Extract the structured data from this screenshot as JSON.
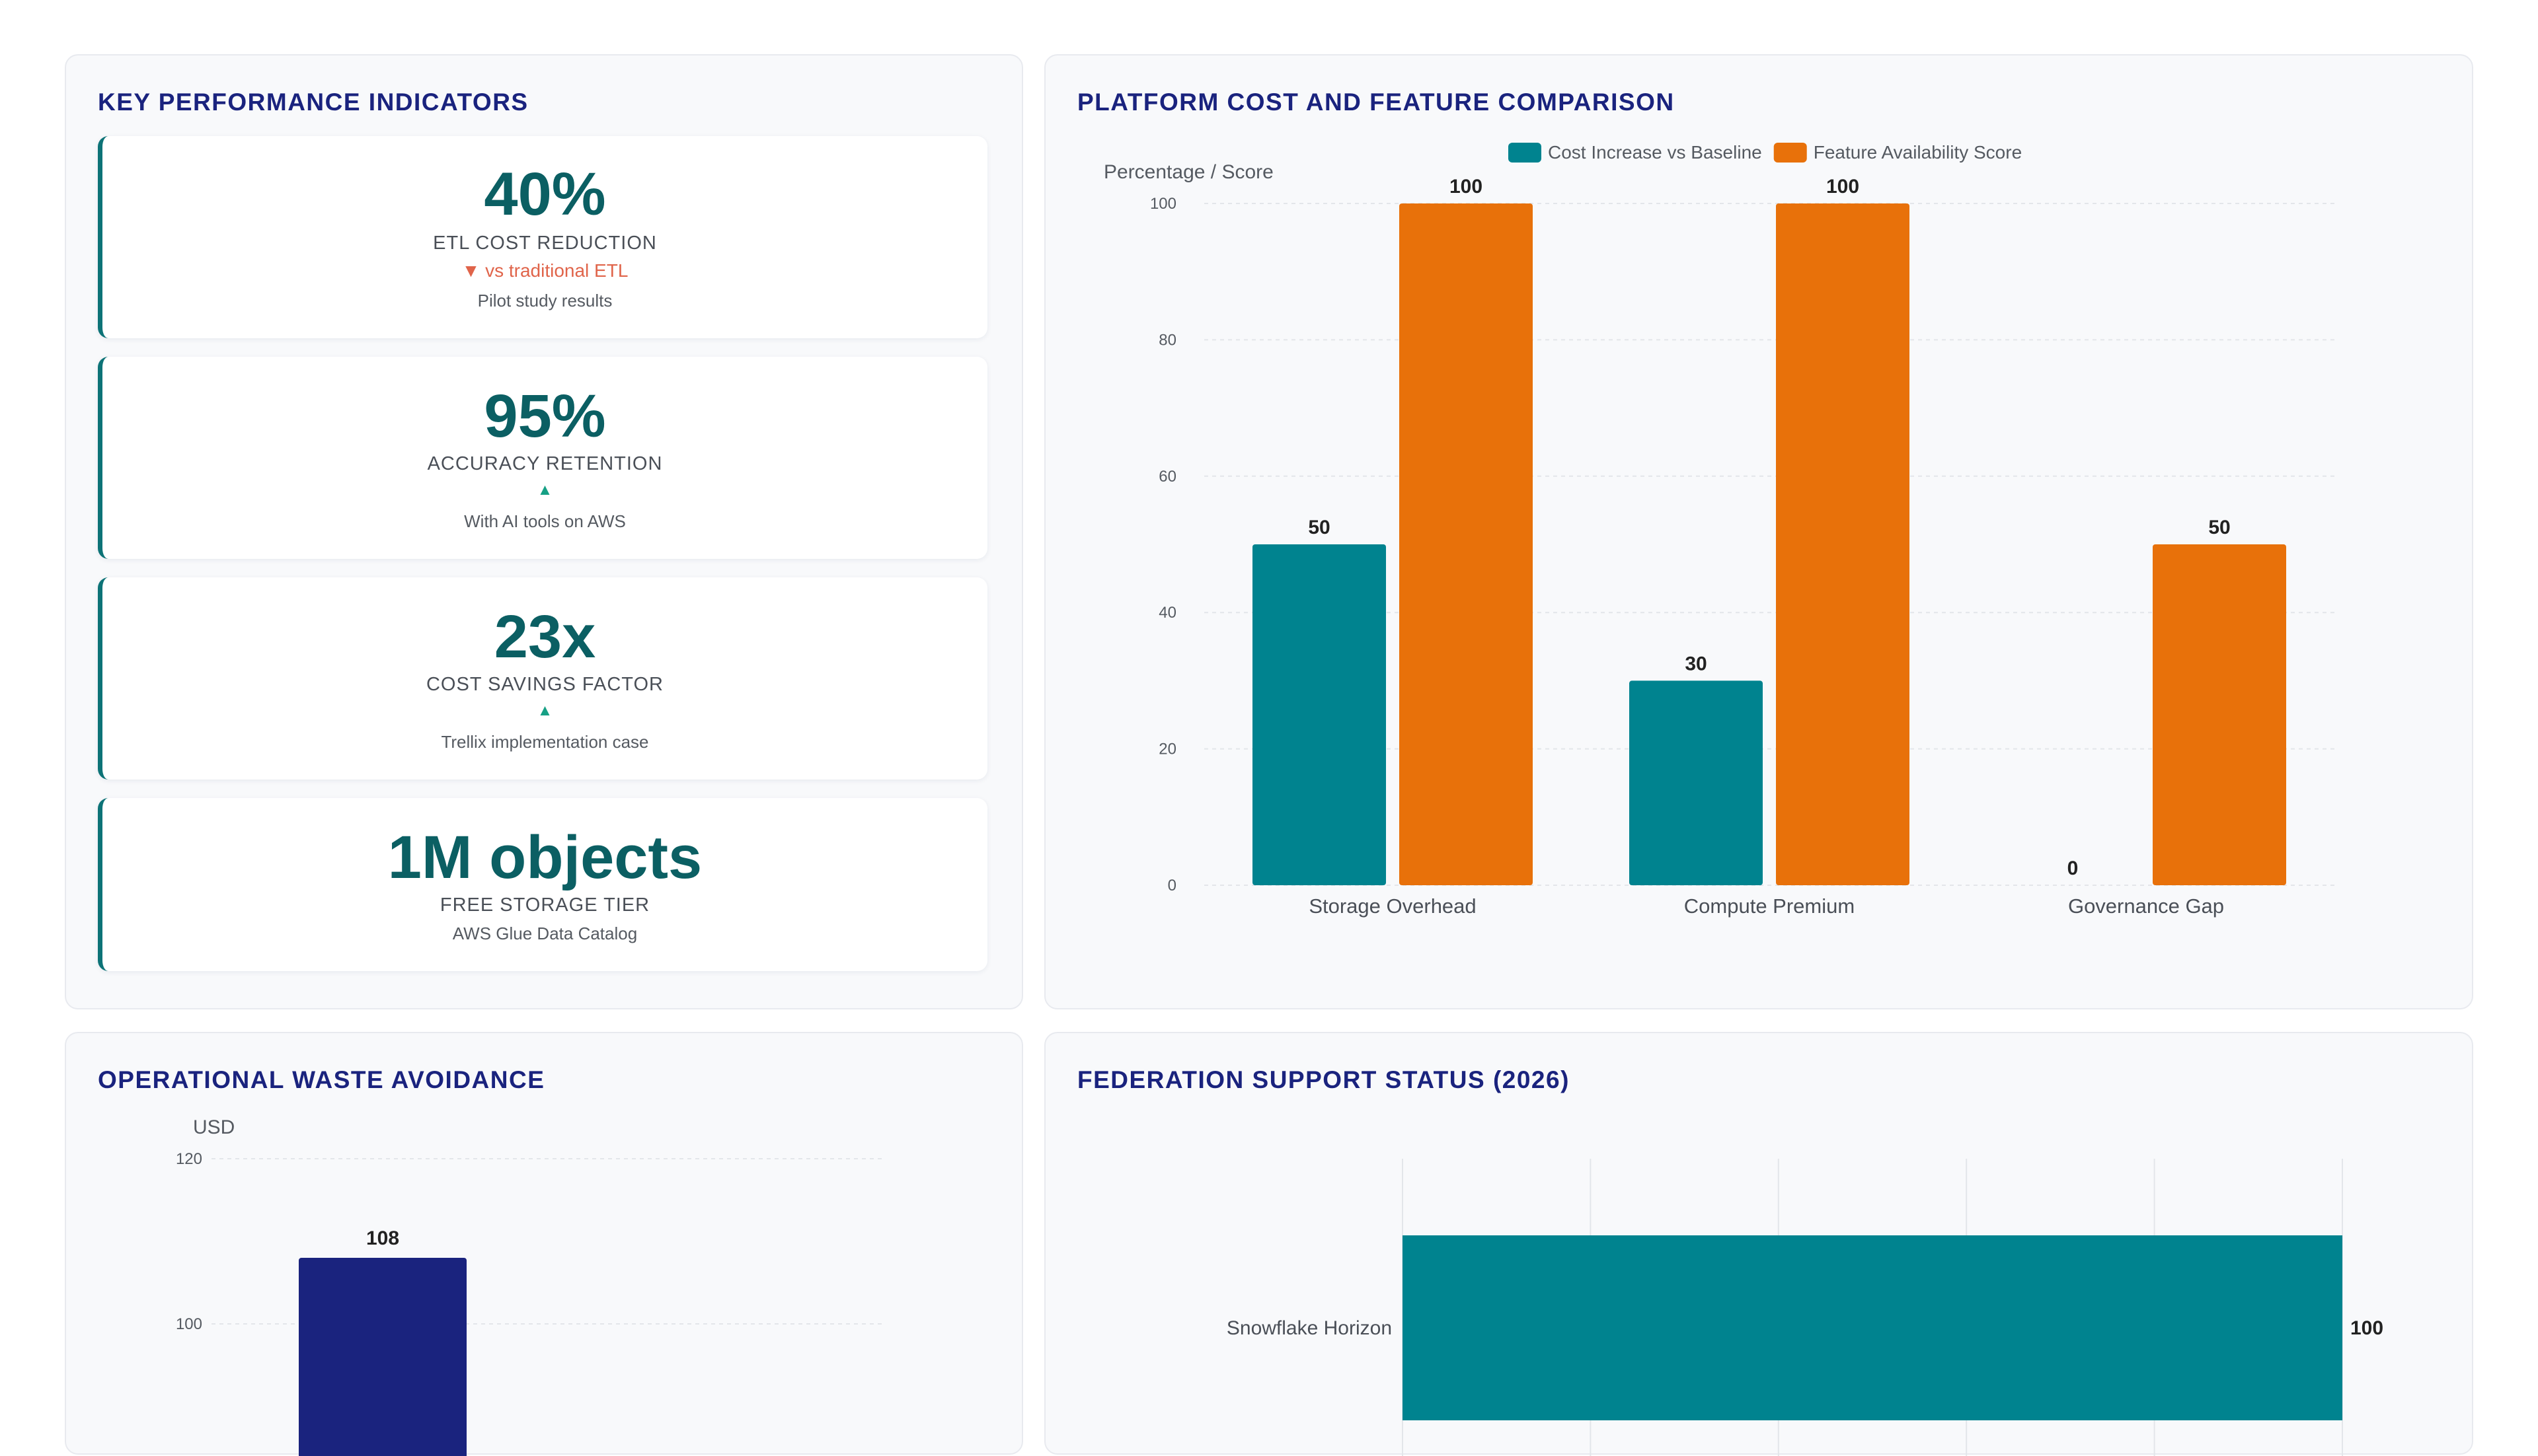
{
  "kpi_panel": {
    "title": "KEY PERFORMANCE INDICATORS",
    "cards": [
      {
        "value": "40%",
        "label": "ETL COST REDUCTION",
        "trend": "▼ vs traditional ETL",
        "trend_direction": "down",
        "note": "Pilot study results"
      },
      {
        "value": "95%",
        "label": "ACCURACY RETENTION",
        "trend": "▲",
        "trend_direction": "up",
        "note": "With AI tools on AWS"
      },
      {
        "value": "23x",
        "label": "COST SAVINGS FACTOR",
        "trend": "▲",
        "trend_direction": "up",
        "note": "Trellix implementation case"
      },
      {
        "value": "1M objects",
        "label": "FREE STORAGE TIER",
        "trend": "",
        "trend_direction": "none",
        "note": "AWS Glue Data Catalog"
      }
    ]
  },
  "comparison_panel": {
    "title": "PLATFORM COST AND FEATURE COMPARISON"
  },
  "waste_panel": {
    "title": "OPERATIONAL WASTE AVOIDANCE"
  },
  "federation_panel": {
    "title": "FEDERATION SUPPORT STATUS (2026)"
  },
  "colors": {
    "teal": "#00838f",
    "orange": "#e8710a",
    "navy": "#1a237e",
    "kpi_value": "#0b5f63",
    "trend_down": "#e0644a",
    "trend_up": "#16a085"
  },
  "chart_data": [
    {
      "type": "bar",
      "title": "PLATFORM COST AND FEATURE COMPARISON",
      "ylabel": "Percentage / Score",
      "xlabel": "",
      "categories": [
        "Storage Overhead",
        "Compute Premium",
        "Governance Gap"
      ],
      "series": [
        {
          "name": "Cost Increase vs Baseline",
          "values": [
            50,
            30,
            0
          ],
          "color": "#00838f"
        },
        {
          "name": "Feature Availability Score",
          "values": [
            100,
            100,
            50
          ],
          "color": "#e8710a"
        }
      ],
      "ylim": [
        0,
        100
      ],
      "yticks": [
        0,
        20,
        40,
        60,
        80,
        100
      ],
      "grid": true,
      "legend": "top-center"
    },
    {
      "type": "bar",
      "title": "OPERATIONAL WASTE AVOIDANCE",
      "ylabel": "USD",
      "xlabel": "",
      "categories": [
        ""
      ],
      "series": [
        {
          "values": [
            108
          ],
          "color": "#1a237e"
        }
      ],
      "ylim": [
        0,
        120
      ],
      "yticks": [
        100,
        120
      ],
      "grid": true
    },
    {
      "type": "bar",
      "orientation": "horizontal",
      "title": "FEDERATION SUPPORT STATUS (2026)",
      "categories": [
        "Snowflake Horizon"
      ],
      "series": [
        {
          "values": [
            100
          ],
          "color": "#00838f"
        }
      ],
      "xlim": [
        0,
        100
      ],
      "grid": true
    }
  ]
}
